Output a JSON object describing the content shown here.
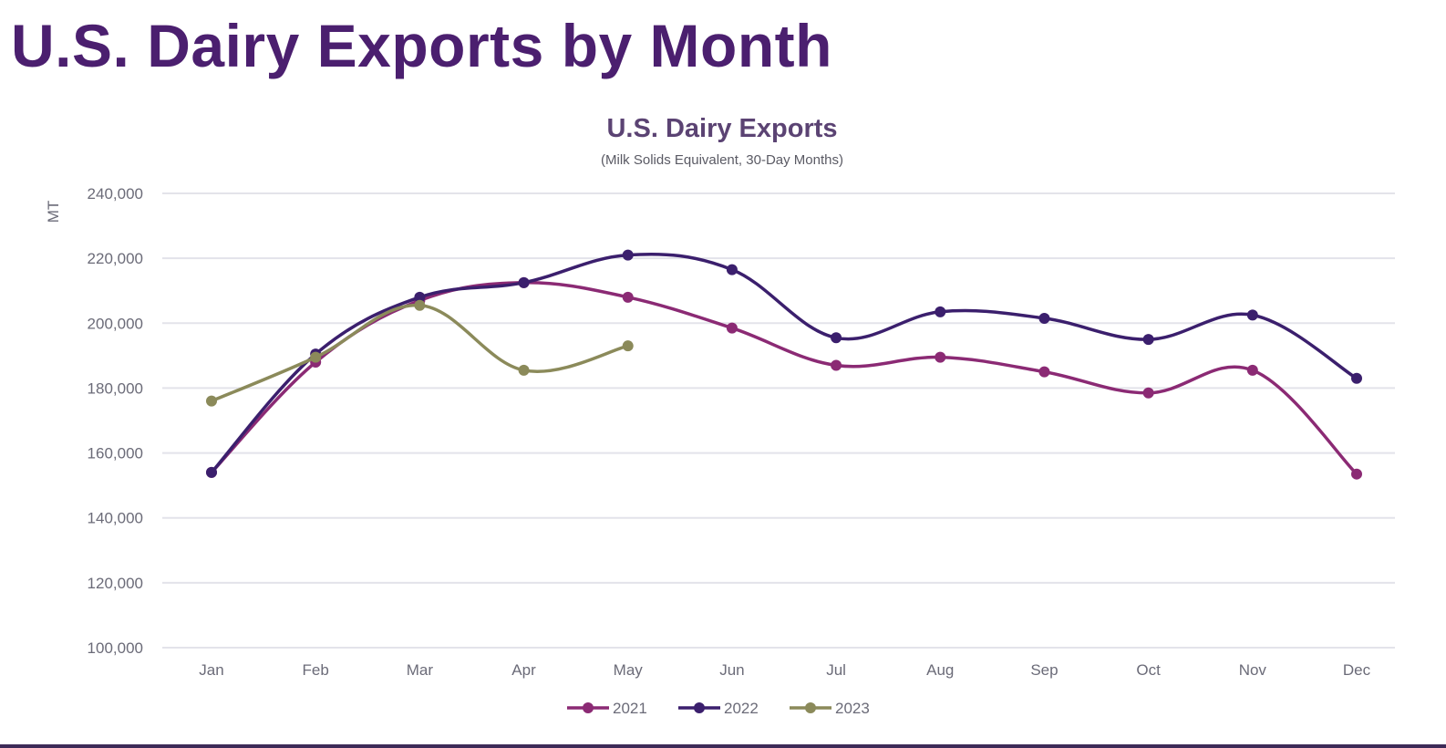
{
  "page": {
    "title": "U.S. Dairy Exports by Month"
  },
  "colors": {
    "title": "#4b1f6f",
    "chart_title": "#5b4373",
    "axis_text": "#6b6b78",
    "grid": "#e3e3ea",
    "bottom_rule": "#3d2a57"
  },
  "chart_data": {
    "type": "line",
    "title": "U.S. Dairy Exports",
    "subtitle": "(Milk Solids Equivalent, 30-Day Months)",
    "xlabel": "",
    "ylabel": "MT",
    "categories": [
      "Jan",
      "Feb",
      "Mar",
      "Apr",
      "May",
      "Jun",
      "Jul",
      "Aug",
      "Sep",
      "Oct",
      "Nov",
      "Dec"
    ],
    "ylim": [
      100000,
      240000
    ],
    "yticks": [
      100000,
      120000,
      140000,
      160000,
      180000,
      200000,
      220000,
      240000
    ],
    "ytick_labels": [
      "100,000",
      "120,000",
      "140,000",
      "160,000",
      "180,000",
      "200,000",
      "220,000",
      "240,000"
    ],
    "grid": true,
    "smooth": true,
    "legend_position": "bottom",
    "series": [
      {
        "name": "2021",
        "color": "#8b2a74",
        "values": [
          154000,
          188000,
          207000,
          212500,
          208000,
          198500,
          187000,
          189500,
          185000,
          178500,
          185500,
          153500
        ]
      },
      {
        "name": "2022",
        "color": "#3b1f6d",
        "values": [
          154000,
          190500,
          208000,
          212500,
          221000,
          216500,
          195500,
          203500,
          201500,
          195000,
          202500,
          183000
        ]
      },
      {
        "name": "2023",
        "color": "#8b8a5a",
        "values": [
          176000,
          189500,
          205500,
          185500,
          193000,
          null,
          null,
          null,
          null,
          null,
          null,
          null
        ]
      }
    ]
  }
}
